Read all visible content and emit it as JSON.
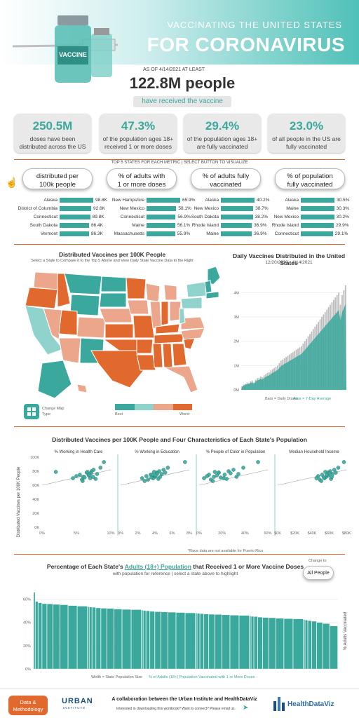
{
  "header": {
    "subtitle": "VACCINATING THE UNITED STATES",
    "title": "FOR CORONAVIRUS",
    "vial_label": "VACCINE"
  },
  "hero": {
    "as_of": "AS OF 4/14/2021 AT LEAST",
    "headline": "122.8M people",
    "tagline": "have received the vaccine"
  },
  "stats": [
    {
      "value": "250.5M",
      "desc1": "doses have been",
      "desc2": "distributed across the US"
    },
    {
      "value": "47.3%",
      "desc1": "of the population ages 18+",
      "desc2": "received 1 or more doses"
    },
    {
      "value": "29.4%",
      "desc1": "of the population ages 18+",
      "desc2": "are fully vaccinated"
    },
    {
      "value": "23.0%",
      "desc1": "of all people in the US are",
      "desc2": "fully vaccinated"
    }
  ],
  "top5": {
    "heading": "TOP 5 STATES FOR EACH METRIC  |  SELECT BUTTON TO VISUALIZE",
    "buttons": [
      {
        "l1": "distributed per",
        "l2": "100k people"
      },
      {
        "l1": "% of adults with",
        "l2": "1 or more doses"
      },
      {
        "l1": "% of adults fully",
        "l2": "vaccinated"
      },
      {
        "l1": "% of population",
        "l2": "fully vaccinated"
      }
    ],
    "columns": [
      {
        "rows": [
          {
            "state": "Alaska",
            "value": "98.8K",
            "frac": 1.0
          },
          {
            "state": "District of Columbia",
            "value": "92.6K",
            "frac": 0.937
          },
          {
            "state": "Connecticut",
            "value": "89.8K",
            "frac": 0.909
          },
          {
            "state": "South Dakota",
            "value": "86.4K",
            "frac": 0.874
          },
          {
            "state": "Vermont",
            "value": "86.3K",
            "frac": 0.873
          }
        ]
      },
      {
        "rows": [
          {
            "state": "New Hampshire",
            "value": "65.9%",
            "frac": 1.0
          },
          {
            "state": "New Mexico",
            "value": "58.1%",
            "frac": 0.882
          },
          {
            "state": "Connecticut",
            "value": "56.9%",
            "frac": 0.863
          },
          {
            "state": "Maine",
            "value": "56.1%",
            "frac": 0.851
          },
          {
            "state": "Massachusetts",
            "value": "55.9%",
            "frac": 0.848
          }
        ]
      },
      {
        "rows": [
          {
            "state": "Alaska",
            "value": "40.2%",
            "frac": 1.0
          },
          {
            "state": "New Mexico",
            "value": "38.7%",
            "frac": 0.963
          },
          {
            "state": "South Dakota",
            "value": "38.2%",
            "frac": 0.95
          },
          {
            "state": "Rhode Island",
            "value": "36.9%",
            "frac": 0.918
          },
          {
            "state": "Maine",
            "value": "36.9%",
            "frac": 0.918
          }
        ]
      },
      {
        "rows": [
          {
            "state": "Alaska",
            "value": "30.5%",
            "frac": 1.0
          },
          {
            "state": "Maine",
            "value": "30.3%",
            "frac": 0.993
          },
          {
            "state": "New Mexico",
            "value": "30.2%",
            "frac": 0.99
          },
          {
            "state": "Rhode Island",
            "value": "29.9%",
            "frac": 0.98
          },
          {
            "state": "Connecticut",
            "value": "29.1%",
            "frac": 0.954
          }
        ]
      }
    ]
  },
  "map": {
    "title": "Distributed Vaccines per 100K People",
    "subtitle": "Select a State to Compare it to the Top 5 Above and View Daily State Vaccine Data to the Right",
    "change_type_l1": "Change Map",
    "change_type_l2": "Type",
    "legend_best": "Best",
    "legend_worst": "Worst",
    "colors": {
      "dark_teal": "#3aa89c",
      "light_teal": "#8fd3cc",
      "light_orange": "#eba68b",
      "dark_orange": "#e2692e"
    }
  },
  "chart_data": [
    {
      "type": "bar",
      "title": "Daily Vaccines Distributed in the United States",
      "subtitle": "12/20/2020 - 4/14/2021",
      "yticks": [
        "0M",
        "1M",
        "2M",
        "3M",
        "4M"
      ],
      "ylim": [
        0,
        4500000
      ],
      "footer_bars": "Bars = Daily Doses",
      "footer_area": "Area = 7-Day Average",
      "daily_start": [
        0.15,
        0.22,
        0.25,
        0.3,
        0.28,
        0.35,
        0.38,
        0.3,
        0.42,
        0.48,
        0.5,
        0.55,
        0.52,
        0.6,
        0.65,
        0.7,
        0.72,
        0.8,
        0.85,
        0.9,
        0.95,
        1.0,
        1.1,
        1.2,
        1.25,
        1.3,
        1.35,
        1.4,
        1.45,
        1.5,
        1.55,
        1.6,
        1.65,
        1.7,
        1.75,
        1.8,
        1.9,
        2.0,
        2.1,
        2.2,
        2.3,
        2.4,
        2.5,
        2.6,
        2.7,
        2.8,
        2.9,
        3.0,
        3.1,
        3.2,
        3.3,
        3.4,
        3.5,
        3.6,
        3.7,
        3.8,
        3.9,
        4.0,
        3.5,
        3.9,
        4.1,
        4.3
      ]
    },
    {
      "type": "scatter",
      "title": "Distributed Vaccines per 100K People and Four Characteristics of Each State's Population",
      "ylabel": "Distributed Vaccines per 100K People",
      "yticks": [
        "0K",
        "20K",
        "40K",
        "60K",
        "80K",
        "100K"
      ],
      "ylim": [
        0,
        100000
      ],
      "panels": [
        {
          "title": "% Working in Health Care",
          "xticks": [
            "0%",
            "5%",
            "10%"
          ],
          "xlim": [
            0,
            10
          ],
          "points": [
            [
              5.5,
              75
            ],
            [
              6,
              72
            ],
            [
              6.5,
              78
            ],
            [
              7,
              70
            ],
            [
              7.2,
              80
            ],
            [
              5.8,
              68
            ],
            [
              6.8,
              74
            ],
            [
              7.5,
              82
            ],
            [
              8,
              76
            ],
            [
              6.2,
              71
            ],
            [
              5,
              73
            ],
            [
              7.8,
              69
            ],
            [
              8.5,
              85
            ],
            [
              6.6,
              79
            ],
            [
              7.1,
              77
            ],
            [
              4.5,
              70
            ],
            [
              9,
              93
            ],
            [
              7.4,
              72
            ],
            [
              6.9,
              75
            ],
            [
              5.9,
              66
            ],
            [
              2,
              79
            ]
          ]
        },
        {
          "title": "% Working in Education",
          "xticks": [
            "0%",
            "2%",
            "4%",
            "6%",
            "8%"
          ],
          "xlim": [
            0,
            8
          ],
          "points": [
            [
              3.5,
              75
            ],
            [
              4,
              72
            ],
            [
              4.2,
              78
            ],
            [
              3.8,
              70
            ],
            [
              4.5,
              80
            ],
            [
              3.2,
              68
            ],
            [
              4.1,
              74
            ],
            [
              5,
              82
            ],
            [
              4.8,
              76
            ],
            [
              3.6,
              71
            ],
            [
              3,
              73
            ],
            [
              4.4,
              69
            ],
            [
              5.5,
              85
            ],
            [
              3.9,
              79
            ],
            [
              4.3,
              77
            ],
            [
              2.5,
              70
            ],
            [
              7.5,
              93
            ],
            [
              4.6,
              72
            ],
            [
              3.7,
              75
            ],
            [
              2.8,
              66
            ],
            [
              5.2,
              78
            ]
          ]
        },
        {
          "title": "% People of Color in Population",
          "xticks": [
            "0%",
            "20%",
            "40%",
            "60%"
          ],
          "xlim": [
            0,
            70
          ],
          "points": [
            [
              10,
              75
            ],
            [
              15,
              72
            ],
            [
              20,
              78
            ],
            [
              25,
              70
            ],
            [
              30,
              80
            ],
            [
              12,
              68
            ],
            [
              18,
              74
            ],
            [
              35,
              82
            ],
            [
              40,
              76
            ],
            [
              22,
              71
            ],
            [
              8,
              73
            ],
            [
              28,
              69
            ],
            [
              45,
              85
            ],
            [
              16,
              79
            ],
            [
              32,
              77
            ],
            [
              5,
              70
            ],
            [
              60,
              93
            ],
            [
              38,
              72
            ],
            [
              26,
              75
            ],
            [
              14,
              66
            ],
            [
              20,
              78
            ]
          ]
        },
        {
          "title": "Median Household Income",
          "xticks": [
            "$0K",
            "$20K",
            "$40K",
            "$60K",
            "$80K"
          ],
          "xlim": [
            0,
            85
          ],
          "points": [
            [
              55,
              75
            ],
            [
              60,
              72
            ],
            [
              62,
              78
            ],
            [
              58,
              70
            ],
            [
              65,
              80
            ],
            [
              52,
              68
            ],
            [
              63,
              74
            ],
            [
              70,
              82
            ],
            [
              68,
              76
            ],
            [
              57,
              71
            ],
            [
              50,
              73
            ],
            [
              66,
              69
            ],
            [
              75,
              85
            ],
            [
              59,
              79
            ],
            [
              64,
              77
            ],
            [
              48,
              70
            ],
            [
              82,
              93
            ],
            [
              67,
              72
            ],
            [
              61,
              75
            ],
            [
              54,
              66
            ],
            [
              72,
              78
            ]
          ]
        }
      ],
      "footnote": "*Race data are not available for Puerto Rico"
    },
    {
      "type": "bar",
      "title": "Percentage of Each State's Adults (18+) Population that Received 1 or More Vaccine Doses",
      "title_pre": "Percentage of Each State's",
      "title_link": "Adults (18+) Population",
      "title_post": "that Received 1 or More Vaccine Doses",
      "subtitle": "with population for reference  |  select a state above to highlight",
      "ylabel": "% Adults Vaccinated",
      "yticks": [
        "0%",
        "20%",
        "40%",
        "60%"
      ],
      "ylim": [
        0,
        70
      ],
      "change_to": "Change to",
      "toggle": "All People",
      "footer_width": "Width = State Population Size",
      "footer_color": "% of Adults (18+) Population Vaccinated with 1 or More Doses",
      "values": [
        65.9,
        58.1,
        56.9,
        56.1,
        55.9,
        55.5,
        55.2,
        54.5,
        54,
        53.5,
        53.2,
        53,
        52.5,
        52.2,
        52,
        51.5,
        51.2,
        51,
        50.5,
        50.2,
        50,
        49.5,
        49.2,
        49,
        48.8,
        48.5,
        48.2,
        48,
        47.8,
        47.5,
        47.2,
        47,
        46.8,
        46.5,
        46.2,
        46,
        45.5,
        45.2,
        45,
        44.5,
        44.2,
        44,
        43.5,
        43.2,
        43,
        42.5,
        42,
        41.5,
        41,
        40,
        39,
        37
      ]
    }
  ],
  "footer": {
    "data_button_l1": "Data &",
    "data_button_l2": "Methodology",
    "urban_logo": "URBAN",
    "urban_sub": "INSTITUTE",
    "collab": "A collaboration between the Urban Institute and HealthDataViz",
    "contact": "Interested in downloading this workbook? Want to connect? Please email us.",
    "hdv_logo": "HealthDataViz"
  }
}
